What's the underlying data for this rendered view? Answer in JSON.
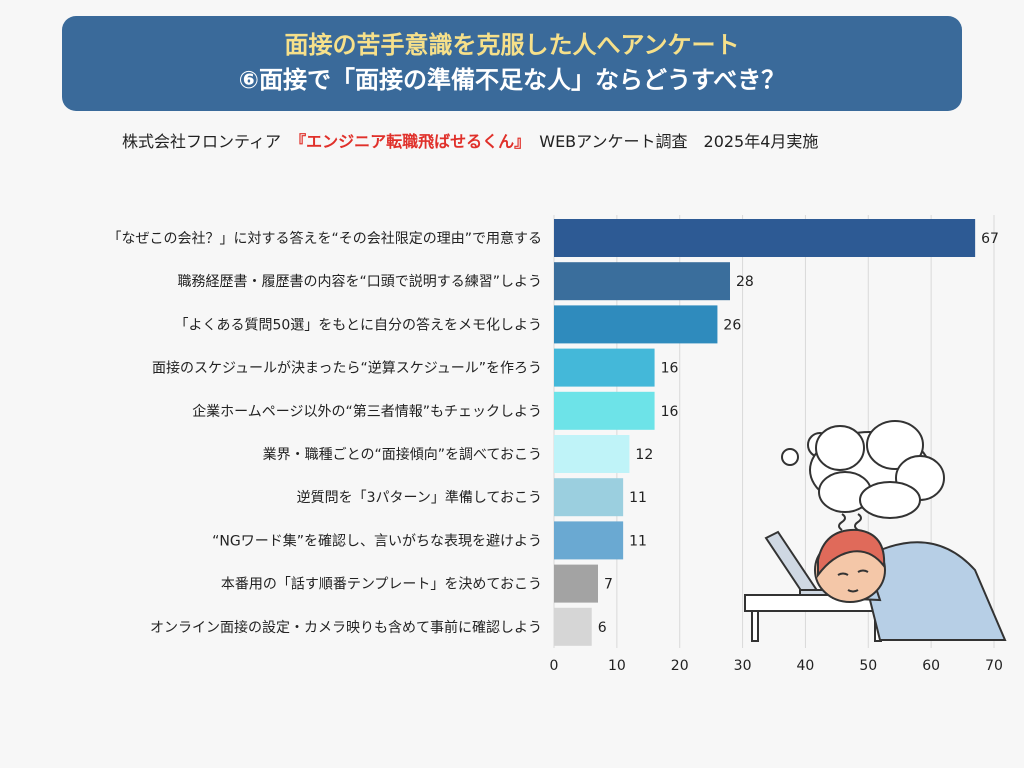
{
  "header": {
    "title_line1": "面接の苦手意識を克服した人へアンケート",
    "title_line2": "⑥面接で「面接の準備不足な人」ならどうすべき？"
  },
  "source": {
    "company": "株式会社フロンティア",
    "brand": "『エンジニア転職飛ばせるくん』",
    "survey": "WEBアンケート調査　2025年4月実施"
  },
  "chart_data": {
    "type": "bar",
    "orientation": "horizontal",
    "categories": [
      "「なぜこの会社？」に対する答えを“その会社限定の理由”で用意する",
      "職務経歴書・履歴書の内容を“口頭で説明する練習”しよう",
      "「よくある質問50選」をもとに自分の答えをメモ化しよう",
      "面接のスケジュールが決まったら“逆算スケジュール”を作ろう",
      "企業ホームページ以外の“第三者情報”もチェックしよう",
      "業界・職種ごとの“面接傾向”を調べておこう",
      "逆質問を「3パターン」準備しておこう",
      "“NGワード集”を確認し、言いがちな表現を避けよう",
      "本番用の「話す順番テンプレート」を決めておこう",
      "オンライン面接の設定・カメラ映りも含めて事前に確認しよう"
    ],
    "values": [
      67,
      28,
      26,
      16,
      16,
      12,
      11,
      11,
      7,
      6
    ],
    "colors": [
      "#2d5a94",
      "#3a6e9c",
      "#2f8bbd",
      "#44b8d9",
      "#6de3e8",
      "#bff3f8",
      "#9bcfdf",
      "#6aa9d2",
      "#a3a3a3",
      "#d6d6d6"
    ],
    "xlim": [
      0,
      70
    ],
    "xticks": [
      0,
      10,
      20,
      30,
      40,
      50,
      60,
      70
    ],
    "grid": true,
    "legend": "none"
  }
}
